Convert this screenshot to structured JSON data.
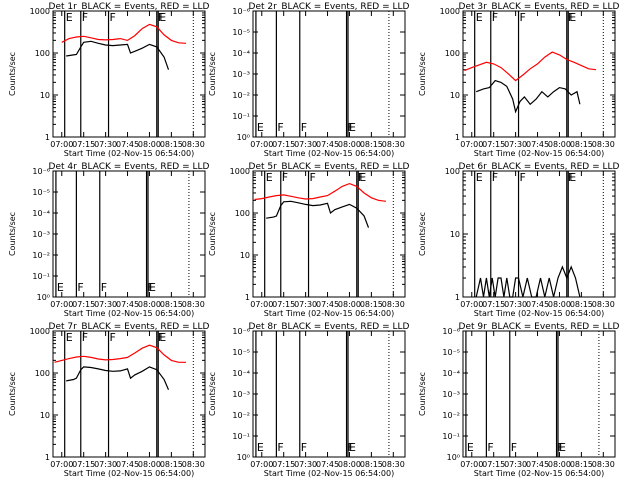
{
  "chart_data": [
    {
      "type": "line",
      "title": "Det 1r_BLACK = Events, RED = LLD",
      "xlabel": "Start Time (02-Nov-15 06:54:00)",
      "ylabel": "Counts/sec",
      "yscale": "log",
      "ylim": [
        1,
        1000
      ],
      "ytick_labels": [
        "1",
        "10",
        "100",
        "1000"
      ],
      "xlim": [
        "06:54",
        "08:38"
      ],
      "xtick_labels": [
        "07:00",
        "07:15",
        "07:30",
        "07:45",
        "08:00",
        "08:15",
        "08:30"
      ],
      "markers": [
        {
          "time": "07:02",
          "label": "E"
        },
        {
          "time": "07:13",
          "label": "F"
        },
        {
          "time": "07:32",
          "label": "F"
        },
        {
          "time": "08:05",
          "label": "F"
        },
        {
          "time": "08:06",
          "label": "E"
        }
      ],
      "dotted_line_time": "08:30",
      "series": [
        {
          "color": "#ff0000",
          "x": [
            "07:00",
            "07:05",
            "07:10",
            "07:15",
            "07:20",
            "07:25",
            "07:30",
            "07:35",
            "07:40",
            "07:45",
            "07:50",
            "07:55",
            "08:00",
            "08:05",
            "08:10",
            "08:15",
            "08:20",
            "08:25"
          ],
          "values": [
            180,
            220,
            240,
            250,
            230,
            210,
            205,
            210,
            220,
            200,
            260,
            380,
            480,
            420,
            270,
            200,
            175,
            170
          ]
        },
        {
          "color": "#000000",
          "x": [
            "07:03",
            "07:08",
            "07:10",
            "07:13",
            "07:15",
            "07:20",
            "07:25",
            "07:30",
            "07:35",
            "07:40",
            "07:45",
            "07:47",
            "07:50",
            "07:55",
            "08:00",
            "08:05",
            "08:10",
            "08:13"
          ],
          "values": [
            85,
            90,
            92,
            140,
            180,
            190,
            170,
            155,
            150,
            155,
            160,
            100,
            110,
            130,
            160,
            140,
            80,
            40
          ]
        }
      ]
    },
    {
      "type": "line",
      "title": "Det 2r_BLACK = Events, RED = LLD",
      "xlabel": "Start Time (02-Nov-15 06:54:00)",
      "ylabel": "Counts/sec",
      "yscale": "log",
      "ylim": [
        1,
        1e-06
      ],
      "ytick_labels": [
        "10⁰",
        "10⁻¹",
        "10⁻²",
        "10⁻³",
        "10⁻⁴",
        "10⁻⁵",
        "10⁻⁶"
      ],
      "xlim": [
        "06:54",
        "08:38"
      ],
      "xtick_labels": [
        "07:00",
        "07:15",
        "07:30",
        "07:45",
        "08:00",
        "08:15",
        "08:30"
      ],
      "markers": [
        {
          "time": "06:56",
          "label": "E"
        },
        {
          "time": "07:10",
          "label": "F"
        },
        {
          "time": "07:26",
          "label": "F"
        },
        {
          "time": "07:58",
          "label": "F"
        },
        {
          "time": "07:59",
          "label": "E"
        }
      ],
      "dotted_line_time": "08:27",
      "series": []
    },
    {
      "type": "line",
      "title": "Det 3r_BLACK = Events, RED = LLD",
      "xlabel": "Start Time (02-Nov-15 06:54:00)",
      "ylabel": "Counts/sec",
      "yscale": "log",
      "ylim": [
        1,
        1000
      ],
      "ytick_labels": [
        "1",
        "10",
        "100",
        "1000"
      ],
      "xlim": [
        "06:54",
        "08:38"
      ],
      "xtick_labels": [
        "07:00",
        "07:15",
        "07:30",
        "07:45",
        "08:00",
        "08:15",
        "08:30"
      ],
      "markers": [
        {
          "time": "07:02",
          "label": "E"
        },
        {
          "time": "07:13",
          "label": "F"
        },
        {
          "time": "07:32",
          "label": "F"
        },
        {
          "time": "08:05",
          "label": "F"
        },
        {
          "time": "08:06",
          "label": "E"
        }
      ],
      "dotted_line_time": "08:30",
      "series": [
        {
          "color": "#ff0000",
          "x": [
            "06:55",
            "07:00",
            "07:05",
            "07:10",
            "07:15",
            "07:20",
            "07:25",
            "07:30",
            "07:35",
            "07:40",
            "07:45",
            "07:50",
            "07:55",
            "08:00",
            "08:05",
            "08:10",
            "08:15",
            "08:20",
            "08:25"
          ],
          "values": [
            38,
            45,
            52,
            60,
            55,
            45,
            32,
            22,
            30,
            42,
            55,
            80,
            105,
            90,
            70,
            60,
            50,
            42,
            40
          ]
        },
        {
          "color": "#000000",
          "x": [
            "07:03",
            "07:08",
            "07:12",
            "07:16",
            "07:20",
            "07:24",
            "07:28",
            "07:30",
            "07:33",
            "07:36",
            "07:40",
            "07:44",
            "07:48",
            "07:52",
            "07:56",
            "08:00",
            "08:04",
            "08:08",
            "08:12",
            "08:14"
          ],
          "values": [
            12,
            14,
            15,
            22,
            20,
            16,
            8,
            4,
            7,
            9,
            6,
            8,
            12,
            9,
            12,
            15,
            14,
            10,
            12,
            6
          ]
        }
      ]
    },
    {
      "type": "line",
      "title": "Det 4r_BLACK = Events, RED = LLD",
      "xlabel": "Start Time (02-Nov-15 06:54:00)",
      "ylabel": "Counts/sec",
      "yscale": "log",
      "ylim": [
        1,
        1e-06
      ],
      "ytick_labels": [
        "10⁰",
        "10⁻¹",
        "10⁻²",
        "10⁻³",
        "10⁻⁴",
        "10⁻⁵",
        "10⁻⁶"
      ],
      "xlim": [
        "06:54",
        "08:38"
      ],
      "xtick_labels": [
        "07:00",
        "07:15",
        "07:30",
        "07:45",
        "08:00",
        "08:15",
        "08:30"
      ],
      "markers": [
        {
          "time": "06:56",
          "label": "E"
        },
        {
          "time": "07:10",
          "label": "F"
        },
        {
          "time": "07:26",
          "label": "F"
        },
        {
          "time": "07:58",
          "label": "F"
        },
        {
          "time": "07:59",
          "label": "E"
        }
      ],
      "dotted_line_time": "08:27",
      "series": []
    },
    {
      "type": "line",
      "title": "Det 5r_BLACK = Events, RED = LLD",
      "xlabel": "Start Time (02-Nov-15 06:54:00)",
      "ylabel": "Counts/sec",
      "yscale": "log",
      "ylim": [
        1,
        1000
      ],
      "ytick_labels": [
        "1",
        "10",
        "100",
        "1000"
      ],
      "xlim": [
        "06:54",
        "08:38"
      ],
      "xtick_labels": [
        "07:00",
        "07:15",
        "07:30",
        "07:45",
        "08:00",
        "08:15",
        "08:30"
      ],
      "markers": [
        {
          "time": "07:02",
          "label": "E"
        },
        {
          "time": "07:13",
          "label": "F"
        },
        {
          "time": "07:32",
          "label": "F"
        },
        {
          "time": "08:05",
          "label": "F"
        },
        {
          "time": "08:06",
          "label": "E"
        }
      ],
      "dotted_line_time": "08:30",
      "series": [
        {
          "color": "#ff0000",
          "x": [
            "06:55",
            "07:00",
            "07:05",
            "07:10",
            "07:15",
            "07:20",
            "07:25",
            "07:30",
            "07:35",
            "07:40",
            "07:45",
            "07:50",
            "07:55",
            "08:00",
            "08:05",
            "08:10",
            "08:15",
            "08:20",
            "08:25"
          ],
          "values": [
            210,
            220,
            240,
            260,
            270,
            250,
            230,
            215,
            220,
            240,
            260,
            330,
            430,
            500,
            430,
            300,
            230,
            200,
            190
          ]
        },
        {
          "color": "#000000",
          "x": [
            "07:03",
            "07:08",
            "07:10",
            "07:13",
            "07:15",
            "07:20",
            "07:25",
            "07:30",
            "07:35",
            "07:40",
            "07:45",
            "07:47",
            "07:50",
            "07:55",
            "08:00",
            "08:05",
            "08:10",
            "08:13"
          ],
          "values": [
            75,
            80,
            85,
            150,
            185,
            190,
            175,
            160,
            150,
            155,
            170,
            100,
            120,
            140,
            160,
            130,
            85,
            45
          ]
        }
      ]
    },
    {
      "type": "line",
      "title": "Det 6r_BLACK = Events, RED = LLD",
      "xlabel": "Start Time (02-Nov-15 06:54:00)",
      "ylabel": "Counts/sec",
      "yscale": "log",
      "ylim": [
        1,
        100
      ],
      "ytick_labels": [
        "1",
        "10",
        "100"
      ],
      "xlim": [
        "06:54",
        "08:38"
      ],
      "xtick_labels": [
        "07:00",
        "07:15",
        "07:30",
        "07:45",
        "08:00",
        "08:15",
        "08:30"
      ],
      "markers": [
        {
          "time": "07:02",
          "label": "E"
        },
        {
          "time": "07:13",
          "label": "F"
        },
        {
          "time": "07:32",
          "label": "F"
        },
        {
          "time": "08:05",
          "label": "F"
        },
        {
          "time": "08:06",
          "label": "E"
        }
      ],
      "dotted_line_time": "08:30",
      "series": [
        {
          "color": "#000000",
          "x": [
            "07:03",
            "07:06",
            "07:08",
            "07:10",
            "07:12",
            "07:14",
            "07:16",
            "07:18",
            "07:20",
            "07:22",
            "07:24",
            "07:26",
            "07:28",
            "07:30",
            "07:32",
            "07:35",
            "07:38",
            "07:41",
            "07:44",
            "07:47",
            "07:50",
            "07:53",
            "07:56",
            "07:59",
            "08:02",
            "08:05",
            "08:08",
            "08:11",
            "08:14"
          ],
          "values": [
            1,
            2,
            1,
            2,
            1,
            2,
            1,
            2,
            2,
            1,
            2,
            1,
            1,
            2,
            2,
            1,
            2,
            1,
            1,
            2,
            1,
            2,
            1,
            2,
            3,
            2,
            3,
            2,
            1
          ]
        }
      ]
    },
    {
      "type": "line",
      "title": "Det 7r_BLACK = Events, RED = LLD",
      "xlabel": "Start Time (02-Nov-15 06:54:00)",
      "ylabel": "Counts/sec",
      "yscale": "log",
      "ylim": [
        1,
        1000
      ],
      "ytick_labels": [
        "1",
        "10",
        "100",
        "1000"
      ],
      "xlim": [
        "06:54",
        "08:38"
      ],
      "xtick_labels": [
        "07:00",
        "07:15",
        "07:30",
        "07:45",
        "08:00",
        "08:15",
        "08:30"
      ],
      "markers": [
        {
          "time": "07:02",
          "label": "E"
        },
        {
          "time": "07:13",
          "label": "F"
        },
        {
          "time": "07:32",
          "label": "F"
        },
        {
          "time": "08:05",
          "label": "F"
        },
        {
          "time": "08:06",
          "label": "E"
        }
      ],
      "dotted_line_time": "08:30",
      "series": [
        {
          "color": "#ff0000",
          "x": [
            "06:55",
            "07:00",
            "07:05",
            "07:10",
            "07:15",
            "07:20",
            "07:25",
            "07:30",
            "07:35",
            "07:40",
            "07:45",
            "07:50",
            "07:55",
            "08:00",
            "08:05",
            "08:10",
            "08:15",
            "08:20",
            "08:25"
          ],
          "values": [
            180,
            200,
            220,
            240,
            250,
            235,
            215,
            205,
            210,
            220,
            235,
            300,
            390,
            460,
            400,
            270,
            200,
            180,
            180
          ]
        },
        {
          "color": "#000000",
          "x": [
            "07:03",
            "07:08",
            "07:10",
            "07:13",
            "07:15",
            "07:20",
            "07:25",
            "07:30",
            "07:35",
            "07:40",
            "07:45",
            "07:47",
            "07:50",
            "07:55",
            "08:00",
            "08:05",
            "08:10",
            "08:13"
          ],
          "values": [
            65,
            70,
            75,
            120,
            140,
            135,
            125,
            115,
            110,
            112,
            125,
            75,
            90,
            110,
            140,
            120,
            70,
            40
          ]
        }
      ]
    },
    {
      "type": "line",
      "title": "Det 8r_BLACK = Events, RED = LLD",
      "xlabel": "Start Time (02-Nov-15 06:54:00)",
      "ylabel": "Counts/sec",
      "yscale": "log",
      "ylim": [
        1,
        1e-06
      ],
      "ytick_labels": [
        "10⁰",
        "10⁻¹",
        "10⁻²",
        "10⁻³",
        "10⁻⁴",
        "10⁻⁵",
        "10⁻⁶"
      ],
      "xlim": [
        "06:54",
        "08:38"
      ],
      "xtick_labels": [
        "07:00",
        "07:15",
        "07:30",
        "07:45",
        "08:00",
        "08:15",
        "08:30"
      ],
      "markers": [
        {
          "time": "06:56",
          "label": "E"
        },
        {
          "time": "07:10",
          "label": "F"
        },
        {
          "time": "07:26",
          "label": "F"
        },
        {
          "time": "07:58",
          "label": "F"
        },
        {
          "time": "07:59",
          "label": "E"
        }
      ],
      "dotted_line_time": "08:27",
      "series": []
    },
    {
      "type": "line",
      "title": "Det 9r_BLACK = Events, RED = LLD",
      "xlabel": "Start Time (02-Nov-15 06:54:00)",
      "ylabel": "Counts/sec",
      "yscale": "log",
      "ylim": [
        1,
        1e-06
      ],
      "ytick_labels": [
        "10⁰",
        "10⁻¹",
        "10⁻²",
        "10⁻³",
        "10⁻⁴",
        "10⁻⁵",
        "10⁻⁶"
      ],
      "xlim": [
        "06:54",
        "08:38"
      ],
      "xtick_labels": [
        "07:00",
        "07:15",
        "07:30",
        "07:45",
        "08:00",
        "08:15",
        "08:30"
      ],
      "markers": [
        {
          "time": "06:56",
          "label": "E"
        },
        {
          "time": "07:10",
          "label": "F"
        },
        {
          "time": "07:26",
          "label": "F"
        },
        {
          "time": "07:58",
          "label": "F"
        },
        {
          "time": "07:59",
          "label": "E"
        }
      ],
      "dotted_line_time": "08:27",
      "series": []
    }
  ]
}
